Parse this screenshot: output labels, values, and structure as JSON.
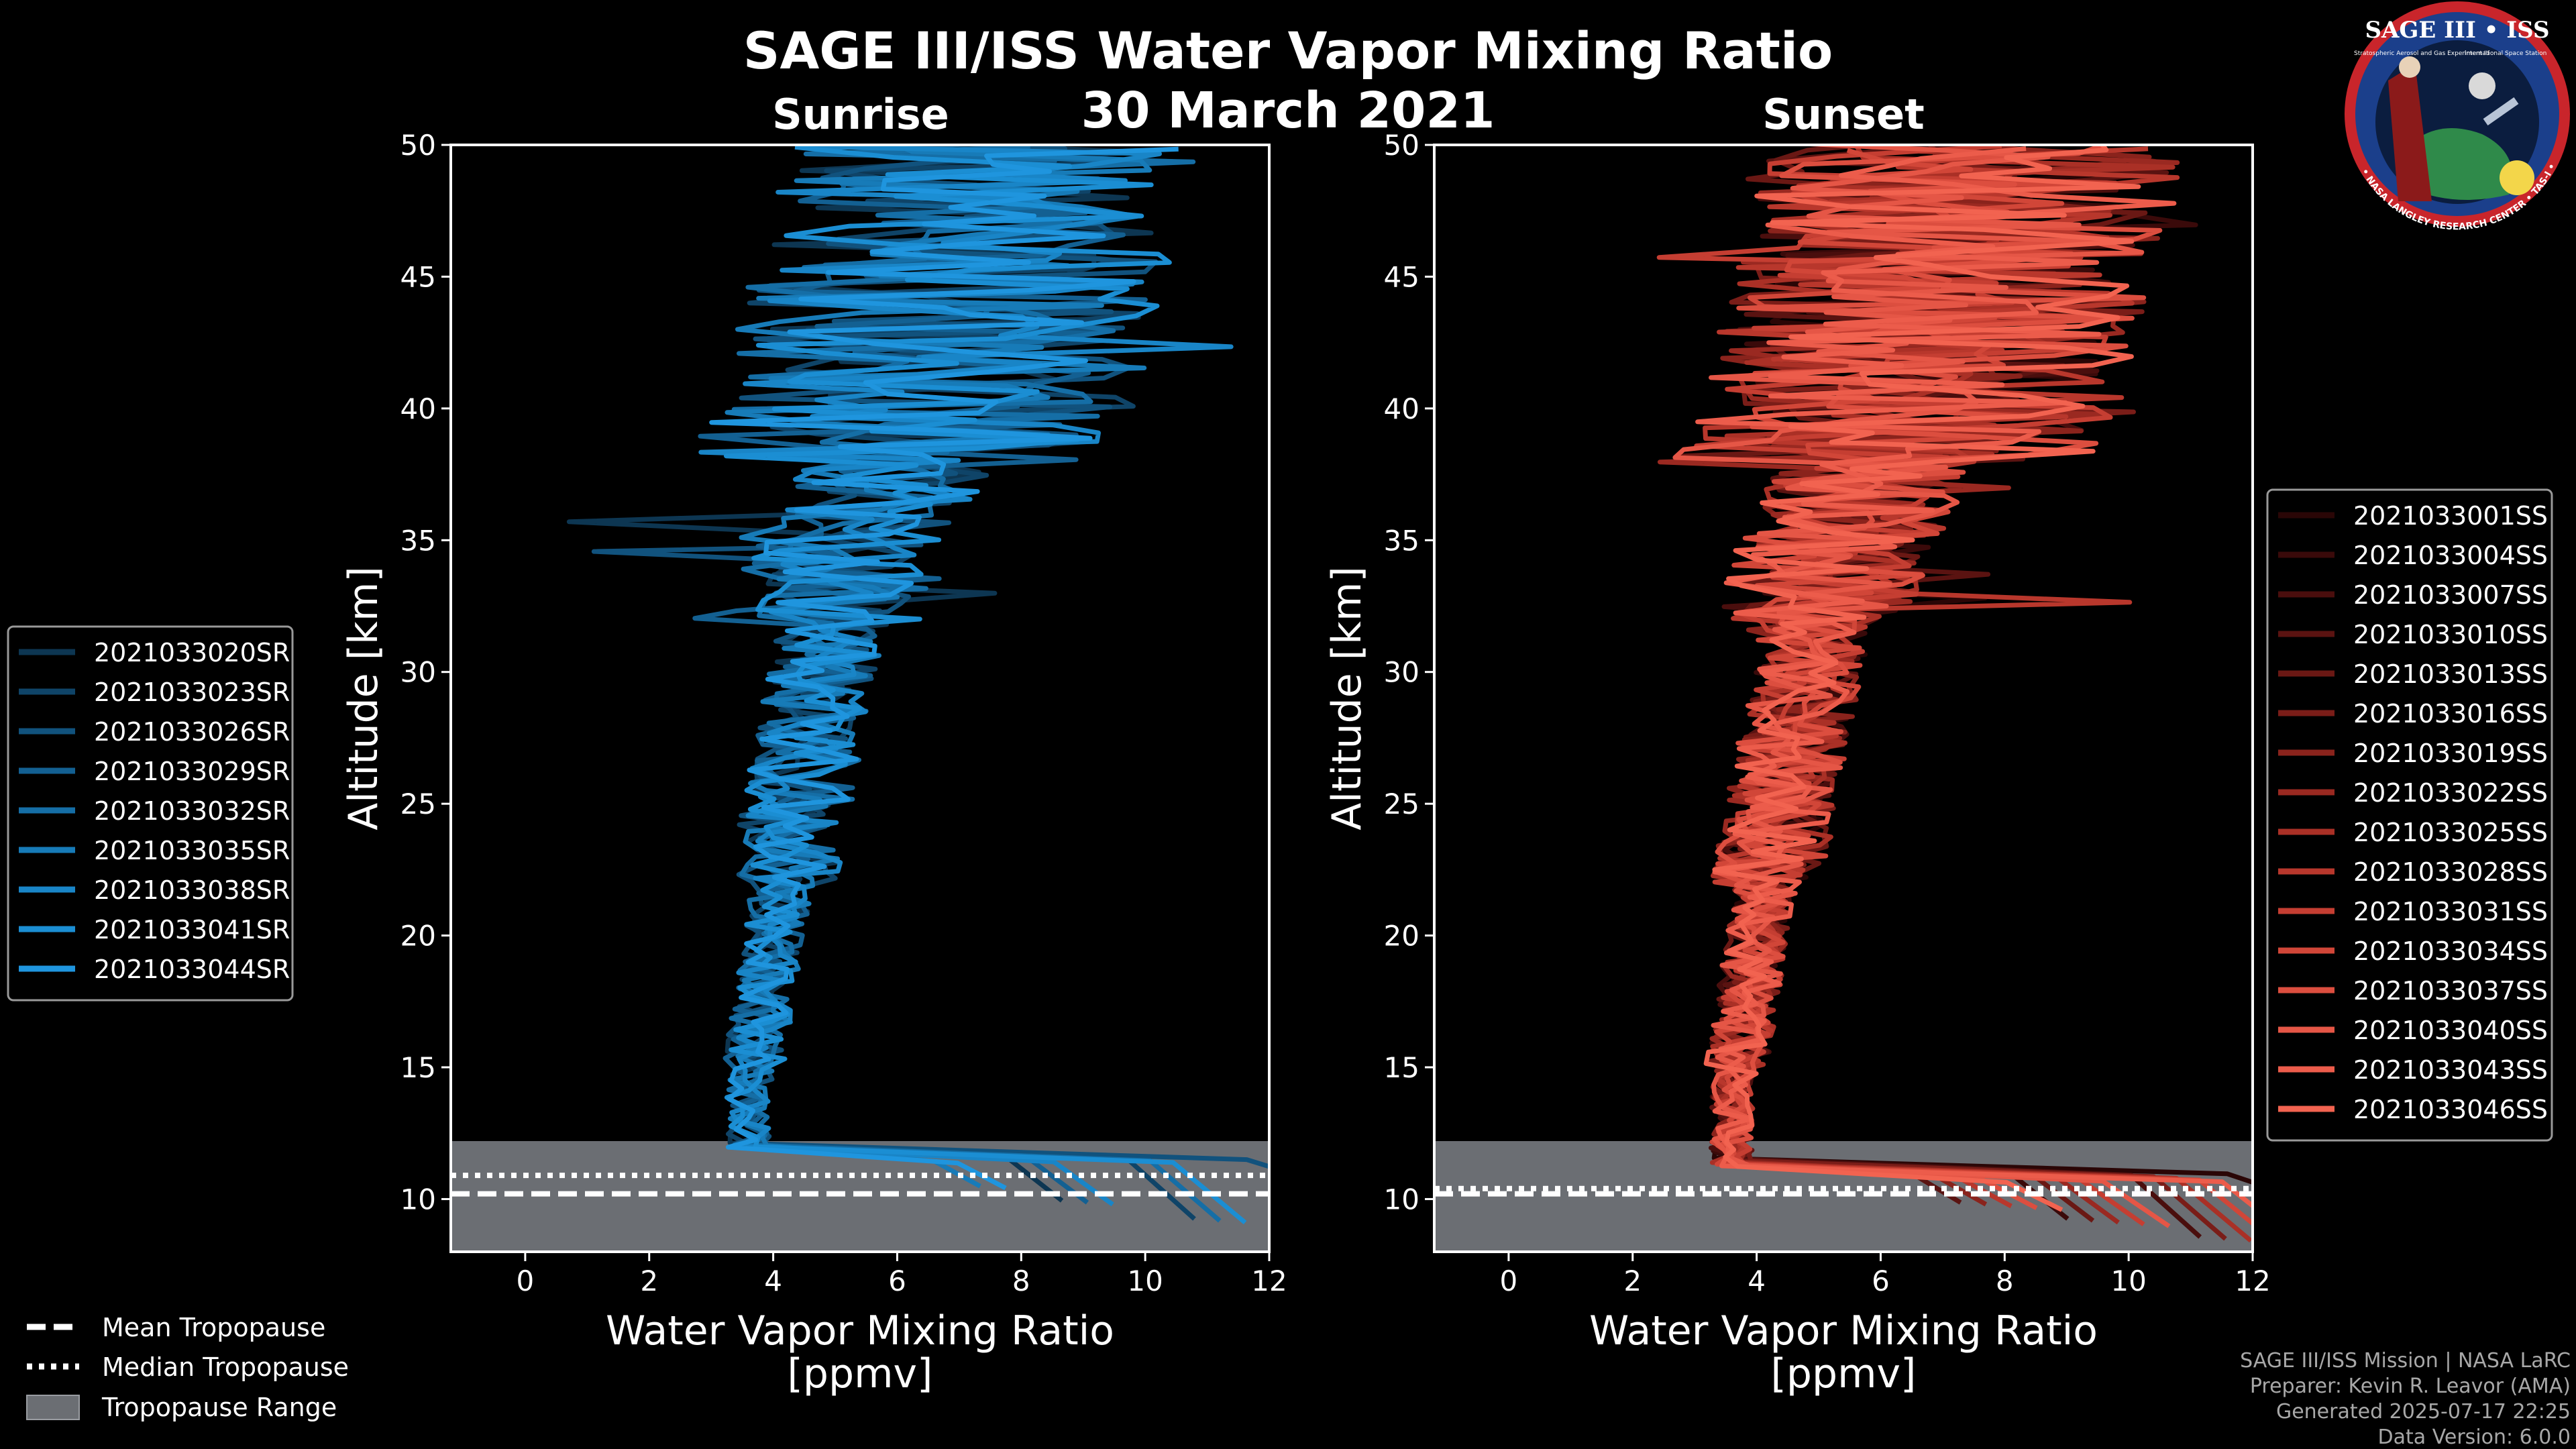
{
  "title": "SAGE III/ISS Water Vapor Mixing Ratio",
  "date": "30 March 2021",
  "logo": {
    "name": "SAGE III • ISS",
    "subtitle": "Stratospheric Aerosol and Gas Experiment III",
    "subtitle2": "International Space Station",
    "ring_text": "BALL • NASA LANGLEY RESEARCH CENTER • TAS-I • ESA"
  },
  "credits": [
    "SAGE III/ISS Mission | NASA LaRC",
    "Preparer: Kevin R. Leavor (AMA)",
    "Generated 2025-07-17 22:25",
    "Data Version: 6.0.0"
  ],
  "bottom_legend": {
    "mean": "Mean Tropopause",
    "median": "Median Tropopause",
    "range": "Tropopause Range"
  },
  "colors": {
    "sunrise": "#1f8fd6",
    "sunset": "#f0604f",
    "tropo_range": "#6b6e73"
  },
  "chart_data": [
    {
      "type": "line",
      "title": "Sunrise",
      "xlabel": "Water Vapor Mixing Ratio\n[ppmv]",
      "ylabel": "Altitude [km]",
      "xlim": [
        -1.2,
        12
      ],
      "ylim": [
        8,
        50
      ],
      "xticks": [
        0,
        2,
        4,
        6,
        8,
        10,
        12
      ],
      "yticks": [
        10,
        15,
        20,
        25,
        30,
        35,
        40,
        45,
        50
      ],
      "tropopause": {
        "mean": 10.2,
        "median": 10.9,
        "range": [
          8,
          12.2
        ]
      },
      "legend_position": "left",
      "series": [
        {
          "name": "2021033020SR",
          "color": "#0d3652"
        },
        {
          "name": "2021033023SR",
          "color": "#0f4468"
        },
        {
          "name": "2021033026SR",
          "color": "#11527d"
        },
        {
          "name": "2021033029SR",
          "color": "#136092"
        },
        {
          "name": "2021033032SR",
          "color": "#156ea6"
        },
        {
          "name": "2021033035SR",
          "color": "#177bb8"
        },
        {
          "name": "2021033038SR",
          "color": "#1985c7"
        },
        {
          "name": "2021033041SR",
          "color": "#1b8ed3"
        },
        {
          "name": "2021033044SR",
          "color": "#1f95de"
        }
      ]
    },
    {
      "type": "line",
      "title": "Sunset",
      "xlabel": "Water Vapor Mixing Ratio\n[ppmv]",
      "ylabel": "Altitude [km]",
      "xlim": [
        -1.2,
        12
      ],
      "ylim": [
        8,
        50
      ],
      "xticks": [
        0,
        2,
        4,
        6,
        8,
        10,
        12
      ],
      "yticks": [
        10,
        15,
        20,
        25,
        30,
        35,
        40,
        45,
        50
      ],
      "tropopause": {
        "mean": 10.2,
        "median": 10.4,
        "range": [
          8,
          12.2
        ]
      },
      "legend_position": "right",
      "series": [
        {
          "name": "2021033001SS",
          "color": "#2a0606"
        },
        {
          "name": "2021033004SS",
          "color": "#3a0a0a"
        },
        {
          "name": "2021033007SS",
          "color": "#4a0e0d"
        },
        {
          "name": "2021033010SS",
          "color": "#5a1311"
        },
        {
          "name": "2021033013SS",
          "color": "#6a1814"
        },
        {
          "name": "2021033016SS",
          "color": "#7a1d18"
        },
        {
          "name": "2021033019SS",
          "color": "#8a231c"
        },
        {
          "name": "2021033022SS",
          "color": "#9a2921"
        },
        {
          "name": "2021033025SS",
          "color": "#aa3026"
        },
        {
          "name": "2021033028SS",
          "color": "#b8372c"
        },
        {
          "name": "2021033031SS",
          "color": "#c53e32"
        },
        {
          "name": "2021033034SS",
          "color": "#d14638"
        },
        {
          "name": "2021033037SS",
          "color": "#dc4e3f"
        },
        {
          "name": "2021033040SS",
          "color": "#e55646"
        },
        {
          "name": "2021033043SS",
          "color": "#ec5c4b"
        },
        {
          "name": "2021033046SS",
          "color": "#f26350"
        }
      ]
    }
  ]
}
